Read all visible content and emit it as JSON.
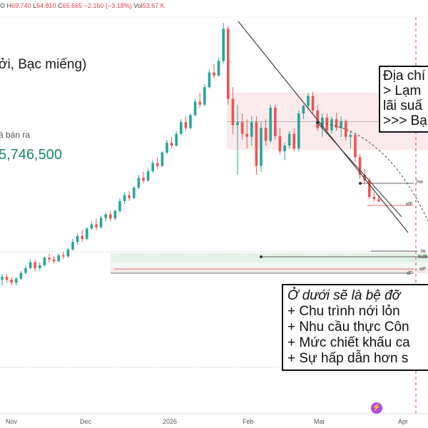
{
  "ohlc": {
    "o_label": "O",
    "o": "",
    "h_label": "H",
    "h": "69.740",
    "l_label": "L",
    "l": "64.810",
    "c_label": "C",
    "c": "65.665",
    "chg": "−2.160 (−3.18%)",
    "vol_label": "Vol",
    "vol": "53.67 K"
  },
  "title": "ởi, Bạc miếng)",
  "price_label": "á bán ra",
  "price_value": "5,746,500",
  "annotation_top": {
    "lines": [
      "Địa chí",
      "> Lạm",
      "lãi suấ",
      ">>> Bạ"
    ]
  },
  "annotation_bottom": {
    "heading": "Ở dưới sẽ là bệ đỡ",
    "lines": [
      "+ Chu trình nới lỏn",
      "+ Nhu cầu thực Côn",
      "+ Mức chiết khấu ca",
      "+ Sự hấp dẫn hơn s"
    ]
  },
  "right_tags": {
    "hw": "hw",
    "idf": "idF",
    "lw": "lw",
    "tkdb": "tkdb",
    "wf": "wF",
    "df": "dF"
  },
  "x_labels": [
    "Nov",
    "Dec",
    "2026",
    "Feb",
    "Mar",
    "Apr"
  ],
  "event_icon": "lightning-icon",
  "chart_data": {
    "type": "candlestick",
    "categories": [
      "Nov",
      "Dec",
      "2026",
      "Feb",
      "Mar",
      "Apr"
    ],
    "up_color": "#26a69a",
    "down_color": "#ef5350",
    "ylim": [
      18,
      78
    ],
    "series": [
      {
        "ohlc": [
          [
            33,
            34,
            32,
            33.5
          ],
          [
            33.5,
            34,
            32.5,
            33
          ],
          [
            33,
            33.5,
            32,
            32.5
          ],
          [
            32.5,
            33.5,
            32,
            33.2
          ],
          [
            33.2,
            34.5,
            33,
            34.2
          ],
          [
            34.2,
            35.5,
            34,
            35
          ],
          [
            35,
            36.5,
            34.8,
            36
          ],
          [
            36,
            36.5,
            34.5,
            35
          ],
          [
            35,
            36,
            34.5,
            35.5
          ],
          [
            35.5,
            37,
            35.2,
            36.8
          ],
          [
            36.8,
            37.5,
            36,
            36.5
          ],
          [
            36.5,
            37,
            35.8,
            36.2
          ],
          [
            36.2,
            37.5,
            36,
            37.2
          ],
          [
            37.2,
            37.8,
            36.5,
            37
          ],
          [
            37,
            38.5,
            36.8,
            38.2
          ],
          [
            38.2,
            40,
            38,
            39.5
          ],
          [
            39.5,
            41,
            39,
            40.5
          ],
          [
            40.5,
            41.5,
            39.5,
            40
          ],
          [
            40,
            42,
            39.8,
            41.8
          ],
          [
            41.8,
            43,
            41.5,
            42.5
          ],
          [
            42.5,
            43.5,
            41.5,
            42
          ],
          [
            42,
            44,
            41.8,
            43.6
          ],
          [
            43.6,
            44.5,
            43,
            44.2
          ],
          [
            44.2,
            44.8,
            43,
            43.5
          ],
          [
            43.5,
            45,
            43.2,
            44.8
          ],
          [
            44.8,
            47,
            44.5,
            46.5
          ],
          [
            46.5,
            48,
            46,
            47.5
          ],
          [
            47.5,
            48.2,
            46.5,
            47
          ],
          [
            47,
            49,
            46.8,
            48.8
          ],
          [
            48.8,
            51,
            48.5,
            50.5
          ],
          [
            50.5,
            51.5,
            49.5,
            50
          ],
          [
            50,
            52,
            49.8,
            51.6
          ],
          [
            51.6,
            53.5,
            51.3,
            53
          ],
          [
            53,
            54,
            52,
            52.5
          ],
          [
            52.5,
            55,
            52.3,
            54.8
          ],
          [
            54.8,
            57,
            54.5,
            56.5
          ],
          [
            56.5,
            57.5,
            55.5,
            56
          ],
          [
            56,
            58.5,
            55.8,
            58
          ],
          [
            58,
            60.5,
            57.8,
            60
          ],
          [
            60,
            61,
            58.5,
            59
          ],
          [
            59,
            61.5,
            58.8,
            61.2
          ],
          [
            61.2,
            64,
            61,
            63.5
          ],
          [
            63.5,
            65,
            62.5,
            63
          ],
          [
            63,
            66.5,
            62.8,
            66
          ],
          [
            66,
            69,
            65.8,
            68.5
          ],
          [
            68.5,
            70,
            67.5,
            68
          ],
          [
            68,
            71,
            67.8,
            70.5
          ],
          [
            70.5,
            77,
            70,
            76
          ],
          [
            76,
            76.5,
            63,
            64
          ],
          [
            64,
            66,
            58,
            59.5
          ],
          [
            59.5,
            63,
            51,
            60
          ],
          [
            60,
            61.5,
            57,
            58
          ],
          [
            58,
            60.5,
            55.5,
            57.5
          ],
          [
            57.5,
            61,
            56,
            60
          ],
          [
            60,
            61,
            51,
            52.5
          ],
          [
            52.5,
            60,
            51.5,
            59
          ],
          [
            59,
            60.5,
            56,
            56.8
          ],
          [
            56.8,
            63,
            56.5,
            62.5
          ],
          [
            62.5,
            63,
            57,
            57.6
          ],
          [
            57.6,
            59,
            54.5,
            55
          ],
          [
            55,
            56.5,
            53.5,
            56
          ],
          [
            56,
            58.5,
            55.5,
            58
          ],
          [
            58,
            59,
            55,
            55.5
          ],
          [
            55.5,
            62,
            55,
            61.5
          ],
          [
            61.5,
            63,
            60.5,
            62.8
          ],
          [
            62.8,
            65,
            62.2,
            64.5
          ],
          [
            64.5,
            65.2,
            61.5,
            62
          ],
          [
            62,
            63,
            58.5,
            59
          ],
          [
            59,
            61.5,
            57.5,
            60.8
          ],
          [
            60.8,
            61.5,
            58,
            58.6
          ],
          [
            58.6,
            61,
            58,
            60.5
          ],
          [
            60.5,
            61.6,
            58.5,
            59
          ],
          [
            59,
            61,
            57.5,
            60.2
          ],
          [
            60.2,
            60.5,
            56.8,
            57.5
          ],
          [
            57.5,
            58.5,
            55.5,
            57.8
          ],
          [
            57.8,
            58,
            53.2,
            54
          ],
          [
            54,
            54.5,
            50.3,
            51
          ],
          [
            51,
            52,
            49.3,
            50
          ],
          [
            50,
            50.5,
            46.8,
            47.2
          ],
          [
            47.2,
            48,
            46.5,
            46.8
          ],
          [
            46.8,
            47.5,
            46.4,
            46.4
          ]
        ]
      }
    ]
  }
}
